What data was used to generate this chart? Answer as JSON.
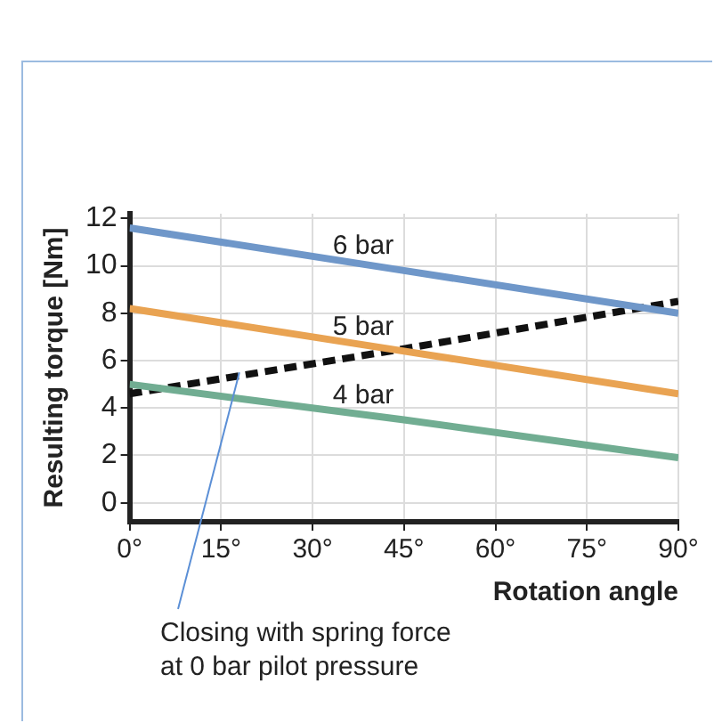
{
  "chart_data": {
    "type": "line",
    "xlabel": "Rotation angle",
    "ylabel": "Resulting torque [Nm]",
    "x": [
      0,
      45,
      90
    ],
    "series": [
      {
        "name": "6 bar",
        "color": "#6f97c9",
        "values": [
          11.6,
          9.8,
          8.0
        ]
      },
      {
        "name": "5 bar",
        "color": "#e9a352",
        "values": [
          8.2,
          6.4,
          4.6
        ]
      },
      {
        "name": "4 bar",
        "color": "#71ad92",
        "values": [
          5.0,
          3.5,
          1.9
        ]
      },
      {
        "color": "#111111",
        "values": [
          4.6,
          6.5,
          8.5
        ],
        "line_style": "dashed"
      }
    ],
    "xlim": [
      0,
      90
    ],
    "xticks": [
      {
        "value": 0,
        "label": "0°"
      },
      {
        "value": 15,
        "label": "15°"
      },
      {
        "value": 30,
        "label": "30°"
      },
      {
        "value": 45,
        "label": "45°"
      },
      {
        "value": 60,
        "label": "60°"
      },
      {
        "value": 75,
        "label": "75°"
      },
      {
        "value": 90,
        "label": "90°"
      }
    ],
    "ylim": [
      -0.8,
      12.2
    ],
    "yticks": [
      0,
      2,
      4,
      6,
      8,
      10,
      12
    ],
    "grid": true,
    "legend": false,
    "marker": "none",
    "annotations": [
      {
        "text": "Closing with spring force\nat 0 bar pilot pressure",
        "x": 18,
        "y": 5.5
      }
    ]
  }
}
